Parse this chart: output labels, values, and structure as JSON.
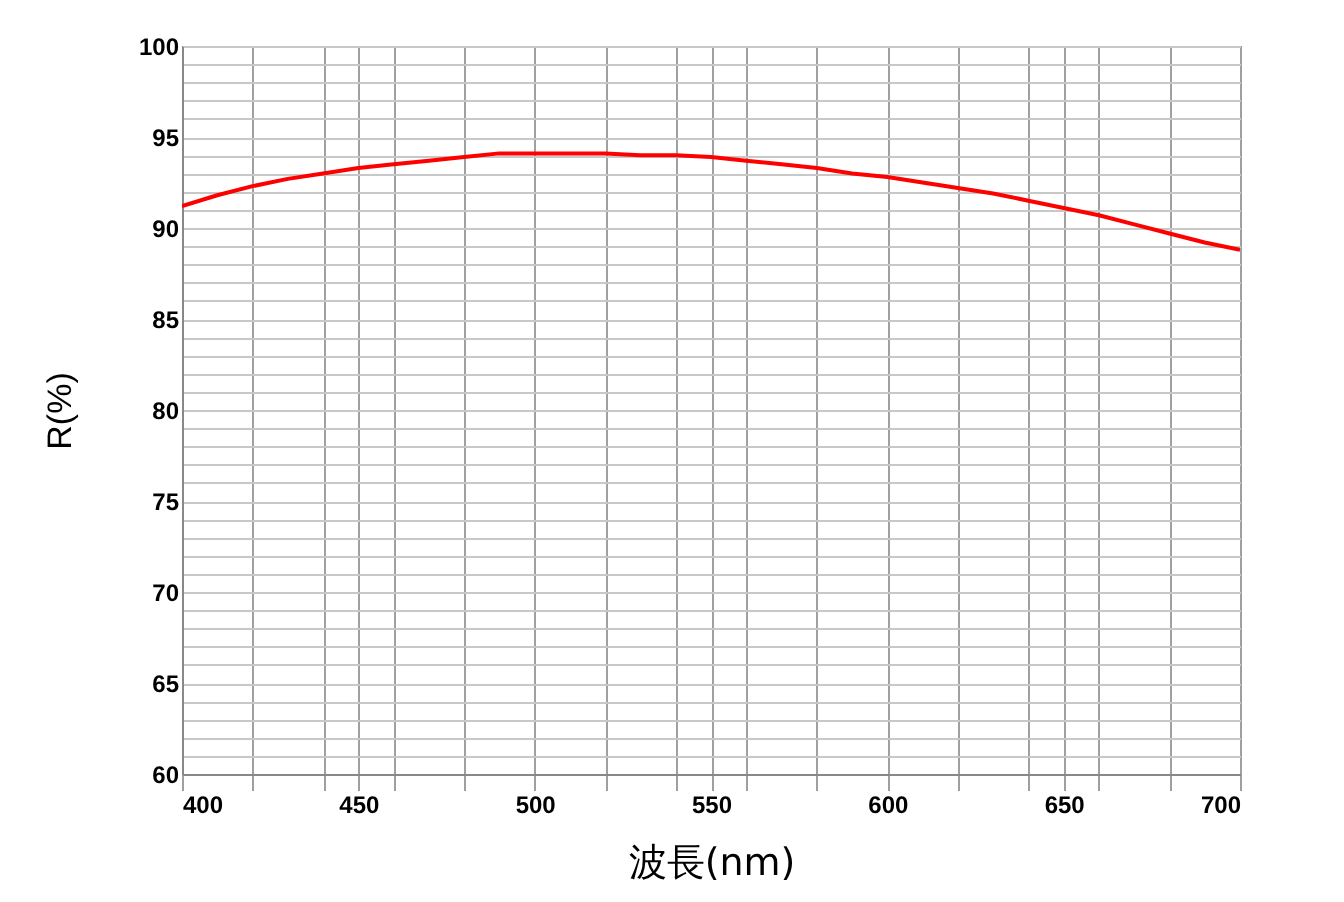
{
  "chart_data": {
    "type": "line",
    "xlabel": "波長(nm)",
    "ylabel": "R(%)",
    "x": [
      400,
      410,
      420,
      430,
      440,
      450,
      460,
      470,
      480,
      490,
      500,
      510,
      520,
      530,
      540,
      550,
      560,
      570,
      580,
      590,
      600,
      610,
      620,
      630,
      640,
      650,
      660,
      670,
      680,
      690,
      700
    ],
    "series": [
      {
        "color": "#ff0000",
        "values": [
          91.2,
          91.8,
          92.3,
          92.7,
          93.0,
          93.3,
          93.5,
          93.7,
          93.9,
          94.1,
          94.1,
          94.1,
          94.1,
          94.0,
          94.0,
          93.9,
          93.7,
          93.5,
          93.3,
          93.0,
          92.8,
          92.5,
          92.2,
          91.9,
          91.5,
          91.1,
          90.7,
          90.2,
          89.7,
          89.2,
          88.8
        ]
      }
    ],
    "xlim": [
      400,
      700
    ],
    "xticks": [
      400,
      {
        "value": 420,
        "label": null
      },
      {
        "value": 440,
        "label": null
      },
      450,
      {
        "value": 460,
        "label": null
      },
      {
        "value": 480,
        "label": null
      },
      500,
      {
        "value": 520,
        "label": null
      },
      {
        "value": 540,
        "label": null
      },
      550,
      {
        "value": 560,
        "label": null
      },
      {
        "value": 580,
        "label": null
      },
      600,
      {
        "value": 620,
        "label": null
      },
      {
        "value": 640,
        "label": null
      },
      650,
      {
        "value": 660,
        "label": null
      },
      {
        "value": 680,
        "label": null
      },
      700
    ],
    "ylim": [
      60,
      100
    ],
    "yticks": [
      60,
      {
        "value": 61,
        "label": null
      },
      {
        "value": 62,
        "label": null
      },
      {
        "value": 63,
        "label": null
      },
      {
        "value": 64,
        "label": null
      },
      65,
      {
        "value": 66,
        "label": null
      },
      {
        "value": 67,
        "label": null
      },
      {
        "value": 68,
        "label": null
      },
      {
        "value": 69,
        "label": null
      },
      70,
      {
        "value": 71,
        "label": null
      },
      {
        "value": 72,
        "label": null
      },
      {
        "value": 73,
        "label": null
      },
      {
        "value": 74,
        "label": null
      },
      75,
      {
        "value": 76,
        "label": null
      },
      {
        "value": 77,
        "label": null
      },
      {
        "value": 78,
        "label": null
      },
      {
        "value": 79,
        "label": null
      },
      80,
      {
        "value": 81,
        "label": null
      },
      {
        "value": 82,
        "label": null
      },
      {
        "value": 83,
        "label": null
      },
      {
        "value": 84,
        "label": null
      },
      85,
      {
        "value": 86,
        "label": null
      },
      {
        "value": 87,
        "label": null
      },
      {
        "value": 88,
        "label": null
      },
      {
        "value": 89,
        "label": null
      },
      90,
      {
        "value": 91,
        "label": null
      },
      {
        "value": 92,
        "label": null
      },
      {
        "value": 93,
        "label": null
      },
      {
        "value": 94,
        "label": null
      },
      95,
      {
        "value": 96,
        "label": null
      },
      {
        "value": 97,
        "label": null
      },
      {
        "value": 98,
        "label": null
      },
      {
        "value": 99,
        "label": null
      },
      100
    ],
    "grid": true,
    "marker": "none",
    "line_style": "solid"
  }
}
